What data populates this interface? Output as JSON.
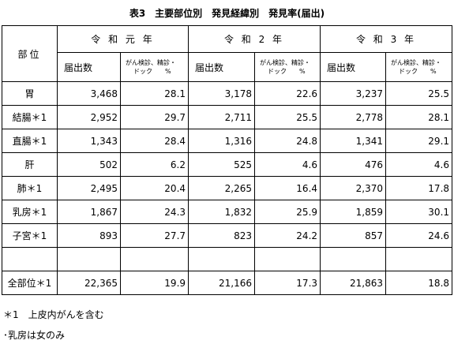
{
  "title": "表3　主要部位別　発見経緯別　発見率(届出)",
  "table": {
    "corner": "部位",
    "groups": [
      "令 和 元 年",
      "令 和 2 年",
      "令 和 3 年"
    ],
    "sub_headers": [
      {
        "count": "届出数",
        "rate_line1": "がん検診、精診・",
        "rate_line2": "ドック　　%"
      },
      {
        "count": "届出数",
        "rate_line1": "がん検診、精診・",
        "rate_line2": "ドック　　%"
      },
      {
        "count": "届出数",
        "rate_line1": "がん検診、精診・",
        "rate_line2": "ドック　　%"
      }
    ],
    "rows": [
      [
        "胃",
        "3,468",
        "28.1",
        "3,178",
        "22.6",
        "3,237",
        "25.5"
      ],
      [
        "結腸＊1",
        "2,952",
        "29.7",
        "2,711",
        "25.5",
        "2,778",
        "28.1"
      ],
      [
        "直腸＊1",
        "1,343",
        "28.4",
        "1,316",
        "24.8",
        "1,341",
        "29.1"
      ],
      [
        "肝",
        "502",
        "6.2",
        "525",
        "4.6",
        "476",
        "4.6"
      ],
      [
        "肺＊1",
        "2,495",
        "20.4",
        "2,265",
        "16.4",
        "2,370",
        "17.8"
      ],
      [
        "乳房＊1",
        "1,867",
        "24.3",
        "1,832",
        "25.9",
        "1,859",
        "30.1"
      ],
      [
        "子宮＊1",
        "893",
        "27.7",
        "823",
        "24.2",
        "857",
        "24.6"
      ]
    ],
    "total": [
      "全部位＊1",
      "22,365",
      "19.9",
      "21,166",
      "17.3",
      "21,863",
      "18.8"
    ]
  },
  "notes": [
    "＊1　上皮内がんを含む",
    "･乳房は女のみ"
  ]
}
